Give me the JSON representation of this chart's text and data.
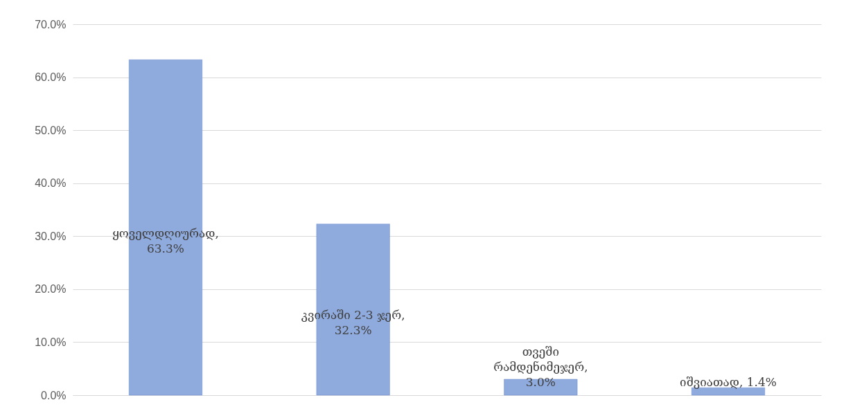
{
  "chart_data": {
    "type": "bar",
    "categories": [
      null,
      null,
      null,
      null
    ],
    "values": [
      63.3,
      32.3,
      3.0,
      1.4
    ],
    "value_labels": [
      "ყოველდღიურად, 63.3%",
      "კვირაში 2-3 ჯერ, 32.3%",
      "თვეში რამდენიმეჯერ, 3.0%",
      "იშვიათად, 1.4%"
    ],
    "color": "#8faadc",
    "ylim": [
      0,
      70
    ],
    "yticks": [
      {
        "value": 0,
        "label": "0.0%"
      },
      {
        "value": 10,
        "label": "10.0%"
      },
      {
        "value": 20,
        "label": "20.0%"
      },
      {
        "value": 30,
        "label": "30.0%"
      },
      {
        "value": 40,
        "label": "40.0%"
      },
      {
        "value": 50,
        "label": "50.0%"
      },
      {
        "value": 60,
        "label": "60.0%"
      },
      {
        "value": 70,
        "label": "70.0%"
      }
    ],
    "grid": "y",
    "tick_labels": "y"
  }
}
